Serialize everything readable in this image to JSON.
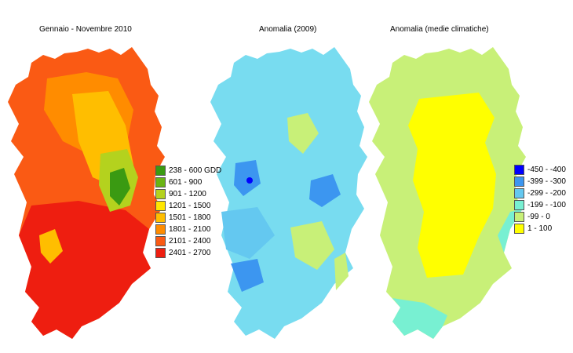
{
  "titles": {
    "left": "Gennaio - Novembre 2010",
    "middle": "Anomalia (2009)",
    "right": "Anomalia (medie climatiche)"
  },
  "legend_gdd": [
    {
      "label": "238 - 600 GDD",
      "color": "#3a9a12"
    },
    {
      "label": "601 - 900",
      "color": "#6ab414"
    },
    {
      "label": "901 - 1200",
      "color": "#b4d21e"
    },
    {
      "label": "1201 - 1500",
      "color": "#ffe600"
    },
    {
      "label": "1501 - 1800",
      "color": "#ffbe00"
    },
    {
      "label": "1801 - 2100",
      "color": "#ff8c00"
    },
    {
      "label": "2101 - 2400",
      "color": "#fa5a14"
    },
    {
      "label": "2401 - 2700",
      "color": "#ee1e10"
    }
  ],
  "legend_anomaly": [
    {
      "label": "-450 - -400",
      "color": "#0000ff"
    },
    {
      "label": "-399 - -300",
      "color": "#3c96f0"
    },
    {
      "label": "-299 - -200",
      "color": "#64c8f0"
    },
    {
      "label": "-199 - -100",
      "color": "#78f0d2"
    },
    {
      "label": "-99 - 0",
      "color": "#c8f078"
    },
    {
      "label": "1 - 100",
      "color": "#ffff00"
    }
  ],
  "map_colors": {
    "gdd_base": "#fa5a14",
    "gdd_south": "#ee1e10",
    "gdd_mid": "#ff8c00",
    "gdd_high": "#ffbe00",
    "gdd_mountain": "#b4d21e",
    "gdd_peak": "#3a9a12",
    "anom2009_base": "#78dcf0",
    "anom2009_light": "#c8f078",
    "anom2009_mid": "#64c8f0",
    "anom2009_dark": "#3c96f0",
    "anom2009_min": "#0000ff",
    "anomclim_base": "#c8f078",
    "anomclim_core": "#ffff00",
    "anomclim_edge": "#78f0d2"
  }
}
